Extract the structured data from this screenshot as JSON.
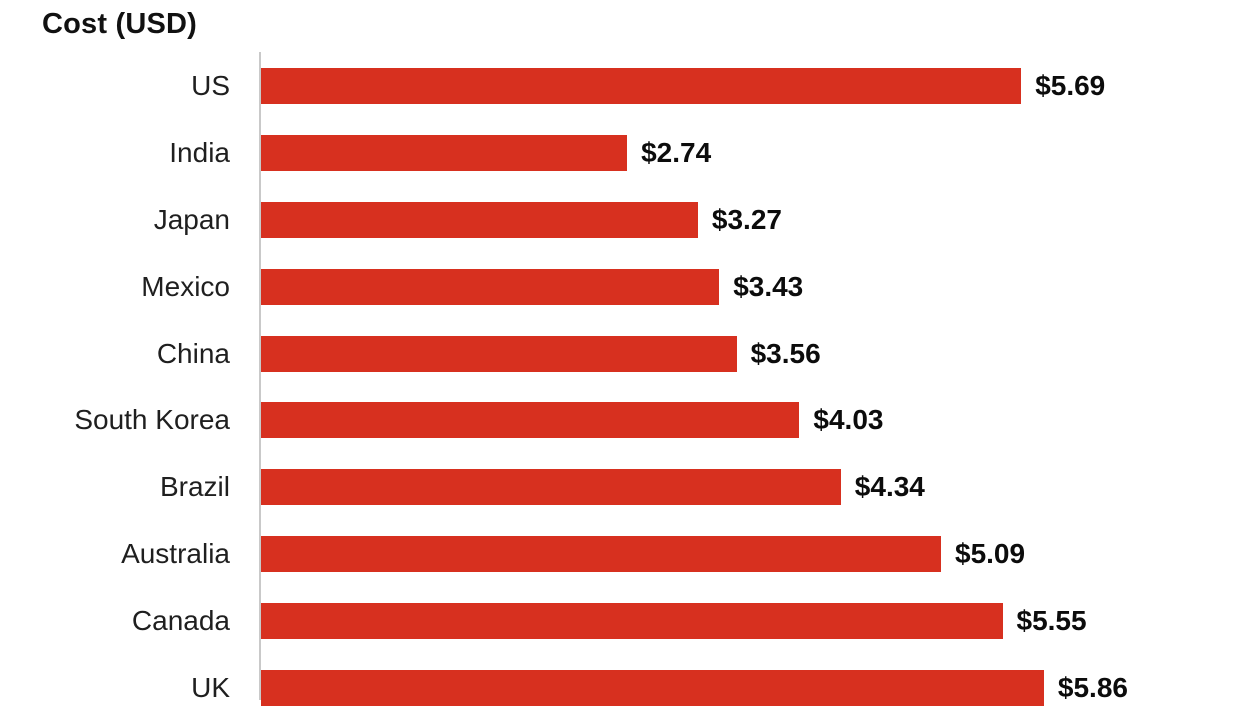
{
  "header": {
    "title": "Cost (USD)"
  },
  "colors": {
    "bar": "#d7301f",
    "axis": "#c9c9c9",
    "title": "#111111",
    "category_label": "#1f1f1f",
    "value_label": "#0c0c0c",
    "background": "#ffffff"
  },
  "chart_data": {
    "type": "bar",
    "orientation": "horizontal",
    "title": "Cost (USD)",
    "categories": [
      "US",
      "India",
      "Japan",
      "Mexico",
      "China",
      "South Korea",
      "Brazil",
      "Australia",
      "Canada",
      "UK"
    ],
    "values": [
      5.69,
      2.74,
      3.27,
      3.43,
      3.56,
      4.03,
      4.34,
      5.09,
      5.55,
      5.86
    ],
    "value_labels": [
      "$5.69",
      "$2.74",
      "$3.27",
      "$3.43",
      "$3.56",
      "$4.03",
      "$4.34",
      "$5.09",
      "$5.55",
      "$5.86"
    ],
    "unit": "USD",
    "value_prefix": "$",
    "xlim": [
      0,
      7.37
    ],
    "grid": false,
    "legend": false,
    "value_labels_position": "end-of-bar",
    "note": "last row (UK) clipped at bottom edge of viewport"
  }
}
